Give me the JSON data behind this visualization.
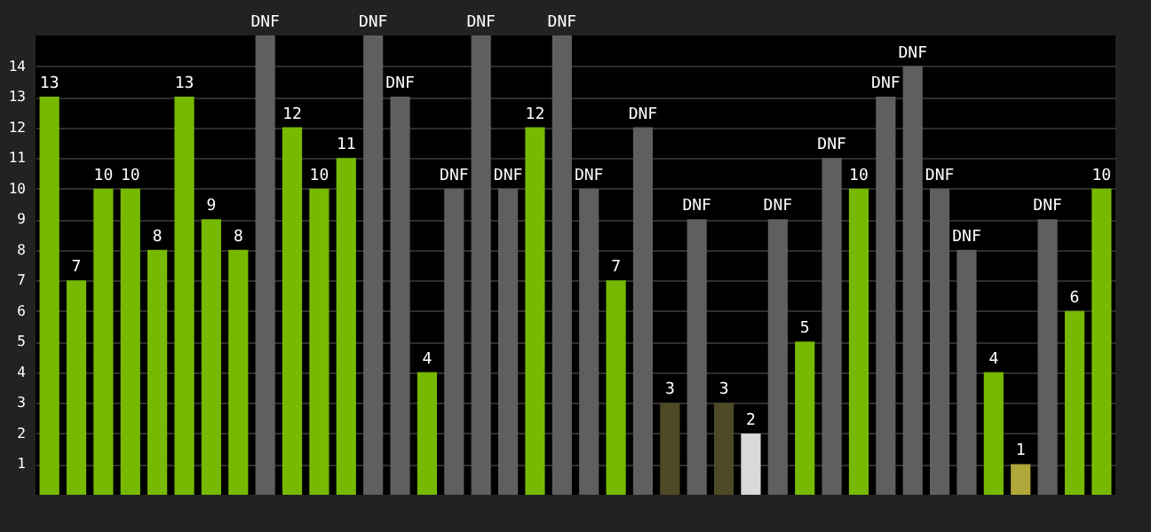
{
  "chart_data": {
    "type": "bar",
    "categories": [
      null,
      null,
      null,
      null,
      null,
      null,
      null,
      null,
      null,
      null,
      null,
      null,
      null,
      null,
      null,
      null,
      null,
      null,
      null,
      null,
      null,
      null,
      null,
      null,
      null,
      null,
      null,
      null,
      null,
      null,
      null,
      null,
      null,
      null,
      null,
      null,
      null,
      null,
      null,
      null
    ],
    "values": [
      13,
      7,
      10,
      10,
      8,
      13,
      9,
      8,
      15,
      12,
      10,
      11,
      15,
      13,
      4,
      10,
      15,
      10,
      12,
      15,
      10,
      7,
      12,
      3,
      9,
      3,
      2,
      9,
      5,
      11,
      10,
      13,
      14,
      10,
      8,
      4,
      1,
      9,
      6,
      10
    ],
    "value_labels": [
      "13",
      "7",
      "10",
      "10",
      "8",
      "13",
      "9",
      "8",
      "DNF",
      "12",
      "10",
      "11",
      "DNF",
      "DNF",
      "4",
      "DNF",
      "DNF",
      "DNF",
      "12",
      "DNF",
      "DNF",
      "7",
      "DNF",
      "3",
      "DNF",
      "3",
      "2",
      "DNF",
      "5",
      "DNF",
      "10",
      "DNF",
      "DNF",
      "DNF",
      "DNF",
      "4",
      "1",
      "DNF",
      "6",
      "10"
    ],
    "colors": [
      "#76b900",
      "#76b900",
      "#76b900",
      "#76b900",
      "#76b900",
      "#76b900",
      "#76b900",
      "#76b900",
      "#5f5f5f",
      "#76b900",
      "#76b900",
      "#76b900",
      "#5f5f5f",
      "#5f5f5f",
      "#76b900",
      "#5f5f5f",
      "#5f5f5f",
      "#5f5f5f",
      "#76b900",
      "#5f5f5f",
      "#5f5f5f",
      "#76b900",
      "#5f5f5f",
      "#4e4a26",
      "#5f5f5f",
      "#4e4a26",
      "#d9d9d9",
      "#5f5f5f",
      "#76b900",
      "#5f5f5f",
      "#76b900",
      "#5f5f5f",
      "#5f5f5f",
      "#5f5f5f",
      "#5f5f5f",
      "#76b900",
      "#b0a63a",
      "#5f5f5f",
      "#76b900",
      "#76b900"
    ],
    "ylim": [
      0,
      15
    ],
    "yticks": [
      1,
      2,
      3,
      4,
      5,
      6,
      7,
      8,
      9,
      10,
      11,
      12,
      13,
      14
    ],
    "grid": "y",
    "tick_labels": "y"
  }
}
